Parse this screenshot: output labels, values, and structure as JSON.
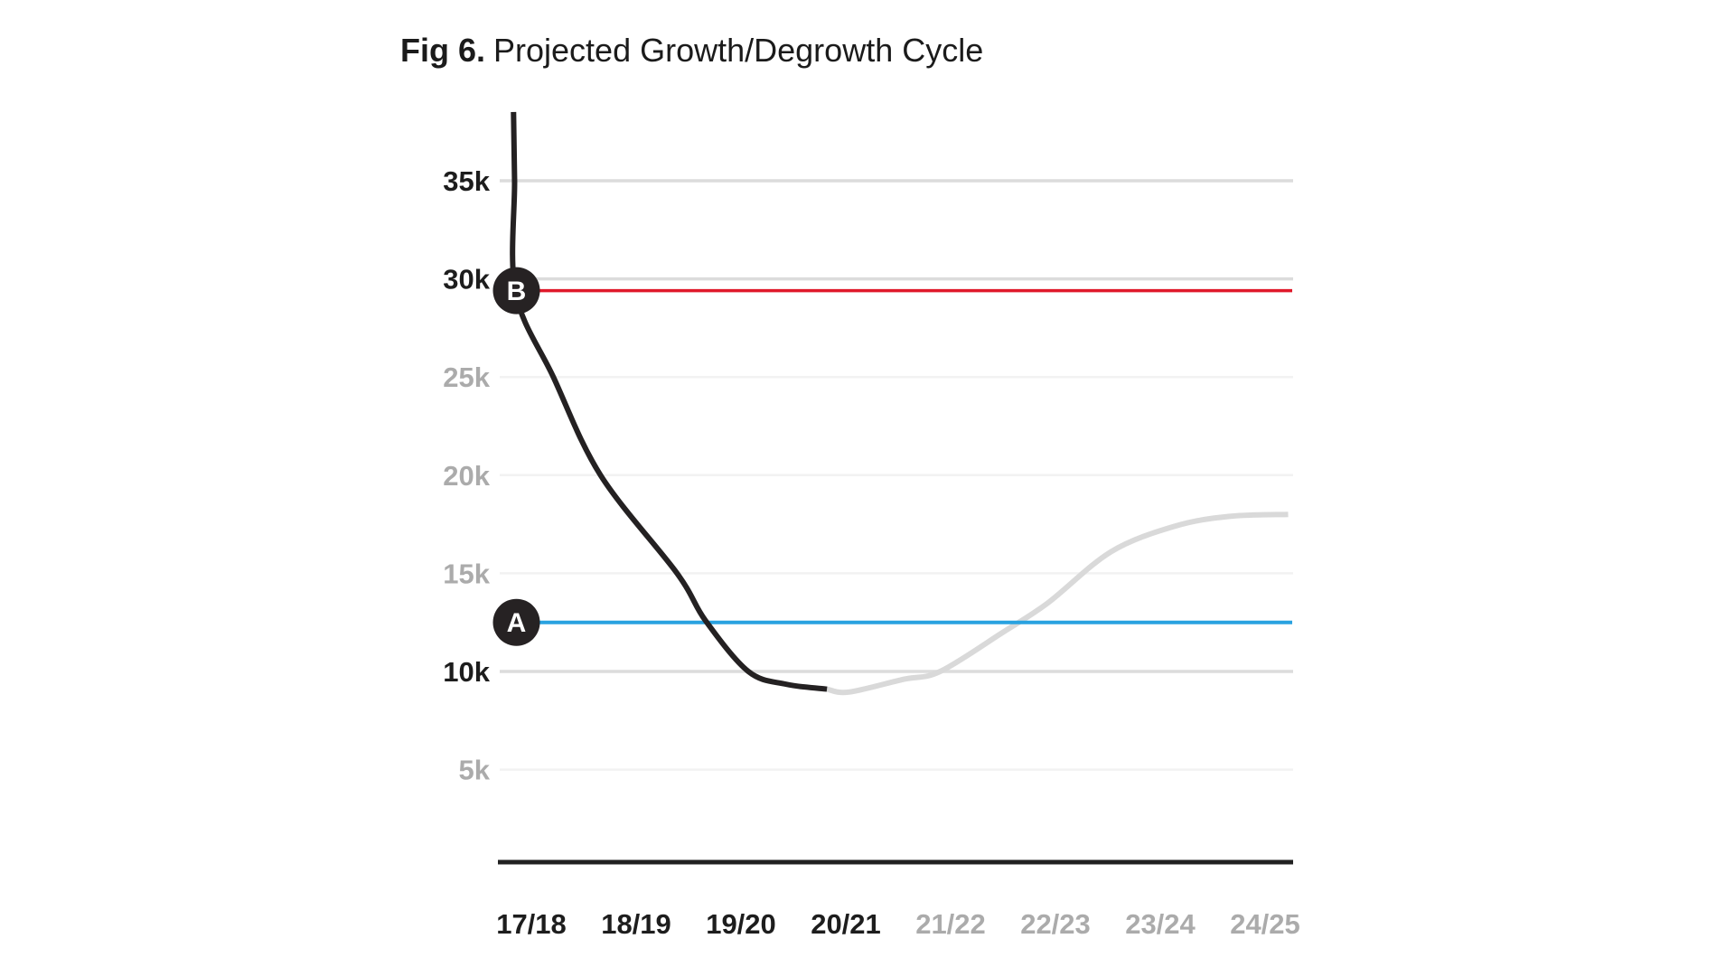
{
  "title": {
    "prefix": "Fig 6.",
    "rest": "Projected Growth/Degrowth Cycle"
  },
  "colors": {
    "title_text": "#1b1b1b",
    "label_dark": "#1d1d1d",
    "label_gray": "#ababab",
    "grid_strong": "#dcdcdc",
    "grid_light": "#f2f2f2",
    "axis": "#212121",
    "marker_fill": "#262223",
    "marker_letter": "#ffffff",
    "actual_curve": "#242122",
    "projection_curve": "#d9d9d9",
    "reference_red": "#e0192a",
    "reference_blue": "#29a2e0"
  },
  "chart_data": {
    "type": "line",
    "title": "Fig 6. Projected Growth/Degrowth Cycle",
    "xlabel": "",
    "ylabel": "",
    "ylim": [
      0,
      40000
    ],
    "grid": "horizontal",
    "legend": "none",
    "x_categories": [
      {
        "label": "17/18",
        "actual": true
      },
      {
        "label": "18/19",
        "actual": true
      },
      {
        "label": "19/20",
        "actual": true
      },
      {
        "label": "20/21",
        "actual": true
      },
      {
        "label": "21/22",
        "actual": false
      },
      {
        "label": "22/23",
        "actual": false
      },
      {
        "label": "23/24",
        "actual": false
      },
      {
        "label": "24/25",
        "actual": false
      }
    ],
    "y_ticks": [
      {
        "label": "35k",
        "value": 35000,
        "emphasized": true
      },
      {
        "label": "30k",
        "value": 30000,
        "emphasized": true
      },
      {
        "label": "25k",
        "value": 25000,
        "emphasized": false
      },
      {
        "label": "20k",
        "value": 20000,
        "emphasized": false
      },
      {
        "label": "15k",
        "value": 15000,
        "emphasized": false
      },
      {
        "label": "10k",
        "value": 10000,
        "emphasized": true
      },
      {
        "label": "5k",
        "value": 5000,
        "emphasized": false
      }
    ],
    "reference_lines": [
      {
        "id": "B",
        "label": "B",
        "value": 29400,
        "color": "#e0192a"
      },
      {
        "id": "A",
        "label": "A",
        "value": 12500,
        "color": "#29a2e0"
      }
    ],
    "series": [
      {
        "name": "actual",
        "color": "#242122",
        "projected": false,
        "points": [
          [
            -0.17,
            38500
          ],
          [
            -0.16,
            35000
          ],
          [
            -0.15,
            29300
          ],
          [
            0.21,
            25000
          ],
          [
            0.66,
            20000
          ],
          [
            1.39,
            15000
          ],
          [
            1.66,
            12600
          ],
          [
            2.07,
            10000
          ],
          [
            2.43,
            9350
          ],
          [
            2.82,
            9100
          ]
        ]
      },
      {
        "name": "projection",
        "color": "#d9d9d9",
        "projected": true,
        "points": [
          [
            2.82,
            9100
          ],
          [
            3.03,
            8950
          ],
          [
            3.55,
            9600
          ],
          [
            3.9,
            10000
          ],
          [
            4.5,
            12000
          ],
          [
            4.93,
            13500
          ],
          [
            5.53,
            16100
          ],
          [
            6.14,
            17400
          ],
          [
            6.66,
            17900
          ],
          [
            7.22,
            18000
          ]
        ]
      }
    ]
  }
}
